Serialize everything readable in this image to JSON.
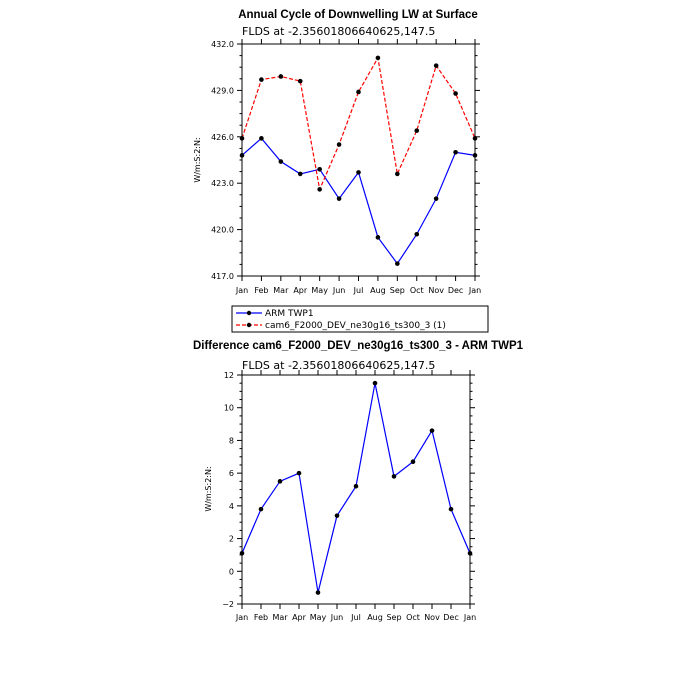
{
  "chart_data": [
    {
      "type": "line",
      "title": "Annual Cycle of Downwelling LW at Surface",
      "subtitle": "FLDS at -2.35601806640625,147.5",
      "ylabel": "W/m:S:2:N:",
      "ylim": [
        417.0,
        432.0
      ],
      "yticks": [
        "432.0",
        "429.0",
        "426.0",
        "423.0",
        "420.0",
        "417.0"
      ],
      "categories": [
        "Jan",
        "Feb",
        "Mar",
        "Apr",
        "May",
        "Jun",
        "Jul",
        "Aug",
        "Sep",
        "Oct",
        "Nov",
        "Dec",
        "Jan"
      ],
      "series": [
        {
          "name": "ARM TWP1",
          "color": "#0000ff",
          "dash": "solid",
          "values": [
            424.8,
            425.9,
            424.4,
            423.6,
            423.9,
            422.0,
            423.7,
            419.5,
            417.8,
            419.7,
            422.0,
            425.0,
            424.8
          ]
        },
        {
          "name": "cam6_F2000_DEV_ne30g16_ts300_3 (1)",
          "color": "#ff0000",
          "dash": "dashed",
          "values": [
            425.9,
            429.7,
            429.9,
            429.6,
            422.6,
            425.5,
            428.9,
            431.1,
            423.6,
            426.4,
            430.6,
            428.8,
            425.9
          ]
        }
      ],
      "legend": "below"
    },
    {
      "type": "line",
      "title": "Difference cam6_F2000_DEV_ne30g16_ts300_3 - ARM TWP1",
      "subtitle": "FLDS at -2.35601806640625,147.5",
      "ylabel": "W/m:S:2:N:",
      "ylim": [
        -2,
        12
      ],
      "yticks": [
        "12",
        "10",
        "8",
        "6",
        "4",
        "2",
        "0",
        "−2"
      ],
      "categories": [
        "Jan",
        "Feb",
        "Mar",
        "Apr",
        "May",
        "Jun",
        "Jul",
        "Aug",
        "Sep",
        "Oct",
        "Nov",
        "Dec",
        "Jan"
      ],
      "series": [
        {
          "color": "#0000ff",
          "dash": "solid",
          "values": [
            1.1,
            3.8,
            5.5,
            6.0,
            -1.3,
            3.4,
            5.2,
            11.5,
            5.8,
            6.7,
            8.6,
            3.8,
            1.1
          ]
        }
      ]
    }
  ]
}
